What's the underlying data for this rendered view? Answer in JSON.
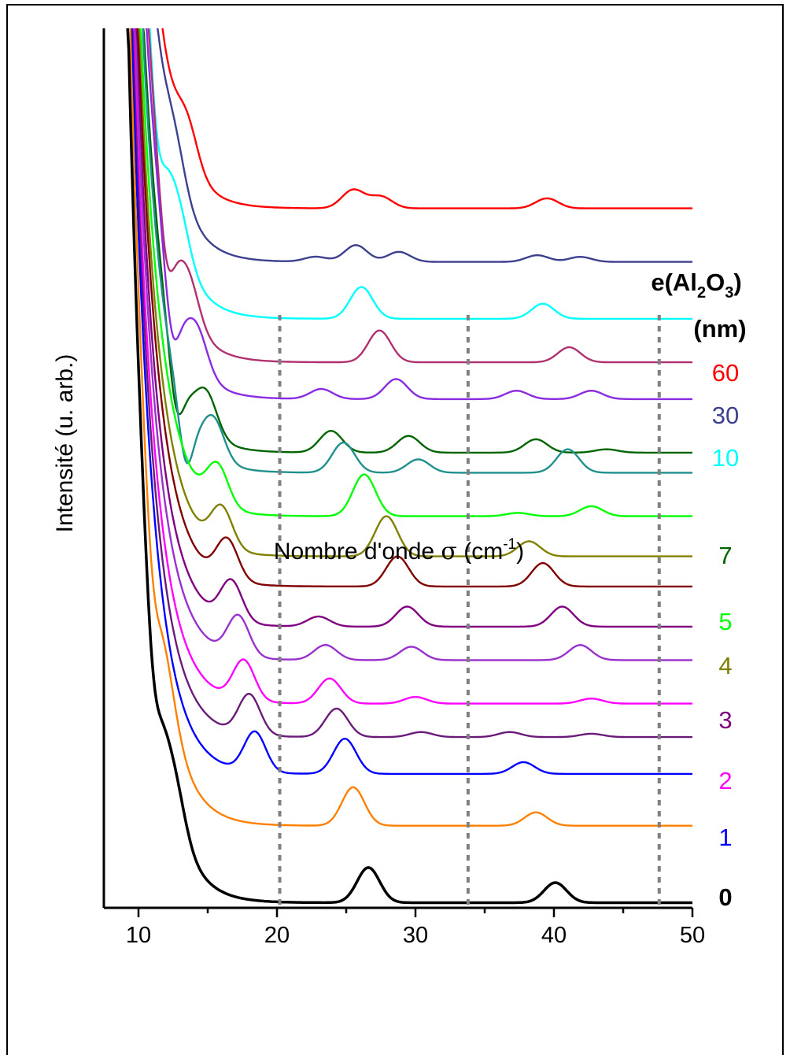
{
  "chart_data": {
    "type": "line",
    "xlabel": "Nombre d'onde σ (cm-1)",
    "xlabel_parts": {
      "main": "Nombre d'onde ",
      "symbol": "σ",
      "unit_open": " (cm",
      "sup": "-1",
      "unit_close": ")"
    },
    "ylabel": "Intensité (u. arb.)",
    "xlim": [
      7.5,
      50
    ],
    "x_ticks": [
      10,
      20,
      30,
      40,
      50
    ],
    "y_ticks": [],
    "grid": false,
    "dashed_reference_lines_x": [
      20.2,
      33.8,
      47.6
    ],
    "legend": {
      "title_line1": "e(Al2O3)",
      "title_parts": {
        "pre": "e(Al",
        "sub1": "2",
        "mid": "O",
        "sub2": "3",
        "post": ")"
      },
      "title_line2": "(nm)",
      "placement": "right"
    },
    "series": [
      {
        "label": "60",
        "color": "#ff0000",
        "baseline": 15.35,
        "peaks": [
          [
            25.5,
            0.55
          ],
          [
            27.5,
            0.35
          ],
          [
            39.5,
            0.3
          ]
        ],
        "bump": [
          13.5,
          1.2
        ],
        "dip": []
      },
      {
        "label": "30",
        "color": "#3d3f8f",
        "baseline": 13.75,
        "peaks": [
          [
            22.8,
            0.15
          ],
          [
            25.7,
            0.5
          ],
          [
            28.8,
            0.3
          ],
          [
            38.8,
            0.2
          ],
          [
            41.9,
            0.15
          ]
        ],
        "bump": [
          12.6,
          1.2
        ],
        "dip": []
      },
      {
        "label": "10",
        "color": "#00ffff",
        "baseline": 12.05,
        "peaks": [
          [
            26.1,
            0.95
          ],
          [
            39.2,
            0.45
          ]
        ],
        "bump": [
          12.9,
          1.2
        ],
        "dip": [
          [
            11.3,
            -1.5
          ]
        ]
      },
      {
        "label": "",
        "color": "#b03070",
        "baseline": 10.75,
        "peaks": [
          [
            27.4,
            0.95
          ],
          [
            41.1,
            0.45
          ]
        ],
        "bump": [
          13.6,
          1.2
        ],
        "dip": [
          [
            12.0,
            -1.5
          ]
        ]
      },
      {
        "label": "",
        "color": "#8a2be2",
        "baseline": 9.65,
        "peaks": [
          [
            23.2,
            0.3
          ],
          [
            28.6,
            0.6
          ],
          [
            37.3,
            0.25
          ],
          [
            42.7,
            0.25
          ]
        ],
        "bump": [
          14.2,
          1.2
        ],
        "dip": [
          [
            12.4,
            -1.5
          ]
        ]
      },
      {
        "label": "7",
        "color": "#006400",
        "baseline": 8.05,
        "peaks": [
          [
            23.9,
            0.65
          ],
          [
            29.5,
            0.5
          ],
          [
            38.7,
            0.4
          ],
          [
            43.8,
            0.1
          ]
        ],
        "bump": [
          14.9,
          1.2
        ],
        "dip": [
          [
            12.7,
            -1.5
          ]
        ]
      },
      {
        "label": "",
        "color": "#20908c",
        "baseline": 7.45,
        "peaks": [
          [
            24.8,
            0.9
          ],
          [
            30.2,
            0.4
          ],
          [
            41.0,
            0.7
          ]
        ],
        "bump": [
          15.4,
          1.2
        ],
        "dip": [
          [
            13.4,
            -1.5
          ]
        ]
      },
      {
        "label": "5",
        "color": "#00ff00",
        "baseline": 6.15,
        "peaks": [
          [
            26.3,
            1.25
          ],
          [
            37.4,
            0.1
          ],
          [
            42.7,
            0.3
          ]
        ],
        "bump": [
          15.7,
          1.2
        ],
        "dip": []
      },
      {
        "label": "4",
        "color": "#808000",
        "baseline": 4.95,
        "peaks": [
          [
            27.9,
            1.2
          ],
          [
            38.2,
            0.45
          ]
        ],
        "bump": [
          16.0,
          1.2
        ],
        "dip": []
      },
      {
        "label": "",
        "color": "#800000",
        "baseline": 4.05,
        "peaks": [
          [
            28.7,
            0.9
          ],
          [
            39.2,
            0.7
          ]
        ],
        "bump": [
          16.4,
          1.2
        ],
        "dip": []
      },
      {
        "label": "3",
        "color": "#800080",
        "baseline": 2.85,
        "peaks": [
          [
            23.0,
            0.3
          ],
          [
            29.4,
            0.6
          ],
          [
            40.6,
            0.6
          ]
        ],
        "bump": [
          16.7,
          1.2
        ],
        "dip": []
      },
      {
        "label": "",
        "color": "#9932cc",
        "baseline": 1.85,
        "peaks": [
          [
            23.5,
            0.45
          ],
          [
            29.7,
            0.4
          ],
          [
            41.9,
            0.45
          ]
        ],
        "bump": [
          17.2,
          1.2
        ],
        "dip": []
      },
      {
        "label": "2",
        "color": "#ff00ff",
        "baseline": 0.55,
        "peaks": [
          [
            23.8,
            0.75
          ],
          [
            30.0,
            0.2
          ],
          [
            42.7,
            0.15
          ]
        ],
        "bump": [
          17.6,
          1.2
        ],
        "dip": []
      },
      {
        "label": "",
        "color": "#6a1b7a",
        "baseline": -0.45,
        "peaks": [
          [
            24.3,
            0.85
          ],
          [
            30.4,
            0.15
          ],
          [
            36.8,
            0.15
          ],
          [
            42.7,
            0.1
          ]
        ],
        "bump": [
          18.0,
          1.2
        ],
        "dip": []
      },
      {
        "label": "1",
        "color": "#0000ff",
        "baseline": -1.55,
        "peaks": [
          [
            24.9,
            1.05
          ],
          [
            37.8,
            0.35
          ]
        ],
        "bump": [
          18.4,
          1.2
        ],
        "dip": []
      },
      {
        "label": "",
        "color": "#ff8000",
        "baseline": -3.1,
        "peaks": [
          [
            25.5,
            1.15
          ],
          [
            38.7,
            0.4
          ]
        ],
        "bump": [
          12.0,
          0.9
        ],
        "dip": [
          [
            11.0,
            -1.4
          ]
        ]
      },
      {
        "label": "0",
        "color": "#000000",
        "baseline": -5.4,
        "peaks": [
          [
            26.6,
            1.05
          ],
          [
            40.1,
            0.6
          ]
        ],
        "bump": [
          12.6,
          1.1
        ],
        "dip": [
          [
            11.0,
            -1.5
          ]
        ]
      }
    ]
  }
}
